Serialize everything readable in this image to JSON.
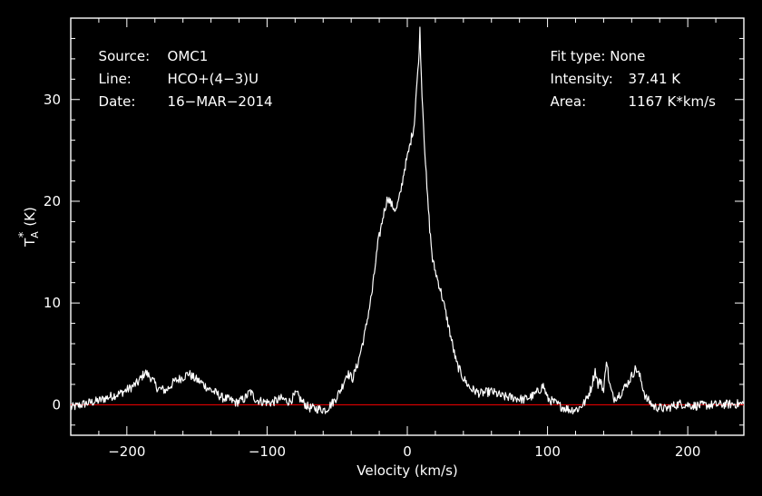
{
  "header": {
    "source_label": "Source:",
    "source_value": "OMC1",
    "line_label": "Line:",
    "line_value": "HCO+(4−3)U",
    "date_label": "Date:",
    "date_value": "16−MAR−2014",
    "fit_label": "Fit type:",
    "fit_value": "None",
    "intensity_label": "Intensity:",
    "intensity_value": "37.41 K",
    "area_label": "Area:",
    "area_value": "1167 K*km/s"
  },
  "colors": {
    "background": "#000000",
    "foreground": "#ffffff",
    "baseline": "#ff0000"
  },
  "chart_data": {
    "type": "line",
    "title": "",
    "xlabel": "Velocity (km/s)",
    "ylabel_main": "T",
    "ylabel_sub": "A",
    "ylabel_sup": "*",
    "ylabel_unit": "(K)",
    "xlim": [
      -240,
      240
    ],
    "ylim": [
      -3,
      38
    ],
    "xticks": [
      -200,
      -100,
      0,
      100,
      200
    ],
    "xtick_labels": [
      "−200",
      "−100",
      "0",
      "100",
      "200"
    ],
    "yticks": [
      0,
      10,
      20,
      30
    ],
    "ytick_labels": [
      "0",
      "10",
      "20",
      "30"
    ],
    "baseline_y": 0,
    "grid": false,
    "series": [
      {
        "x": [
          -240,
          -230,
          -220,
          -212,
          -205,
          -198,
          -192,
          -187,
          -183,
          -178,
          -172,
          -166,
          -160,
          -156,
          -152,
          -147,
          -142,
          -137,
          -132,
          -127,
          -122,
          -116,
          -112,
          -108,
          -103,
          -97,
          -90,
          -84,
          -79,
          -75,
          -70,
          -64,
          -58,
          -52,
          -47,
          -43,
          -39,
          -35,
          -30,
          -25,
          -21,
          -17,
          -14,
          -11,
          -8,
          -5,
          -2,
          1,
          3,
          5,
          6,
          8,
          9,
          10,
          12,
          14,
          16,
          18,
          21,
          24,
          27,
          31,
          35,
          40,
          45,
          52,
          60,
          68,
          76,
          83,
          90,
          94,
          97,
          100,
          104,
          110,
          116,
          122,
          127,
          131,
          134,
          136,
          138,
          140,
          142,
          144,
          147,
          152,
          158,
          163,
          166,
          170,
          176,
          184,
          194,
          205,
          220,
          240
        ],
        "y": [
          -0.3,
          0.1,
          0.4,
          0.8,
          1.1,
          1.6,
          2.2,
          3.2,
          2.7,
          1.6,
          1.4,
          2.3,
          2.7,
          3.1,
          2.6,
          2.2,
          1.6,
          1.2,
          0.7,
          0.5,
          0.2,
          0.6,
          1.3,
          0.5,
          0.3,
          0.2,
          0.6,
          0.3,
          1.1,
          0.3,
          -0.3,
          -0.4,
          -0.5,
          0.4,
          1.6,
          3.1,
          2.6,
          4.2,
          7.2,
          11.2,
          15.8,
          18.7,
          20.4,
          19.6,
          19.1,
          20.7,
          23.2,
          24.9,
          26.3,
          27.6,
          30.1,
          33.5,
          36.8,
          32.2,
          26.3,
          21.2,
          17.3,
          14.2,
          12.6,
          11.1,
          9.3,
          6.7,
          4.1,
          2.6,
          1.6,
          1.1,
          1.3,
          0.8,
          0.7,
          0.5,
          0.9,
          1.4,
          1.9,
          0.6,
          0.3,
          -0.2,
          -0.5,
          -0.4,
          0.3,
          1.6,
          3.4,
          1.9,
          2.5,
          1.2,
          4.6,
          2.1,
          0.6,
          1.1,
          2.3,
          3.6,
          2.7,
          0.7,
          -0.2,
          -0.4,
          0.1,
          -0.1,
          0.0,
          0.1
        ]
      }
    ]
  }
}
